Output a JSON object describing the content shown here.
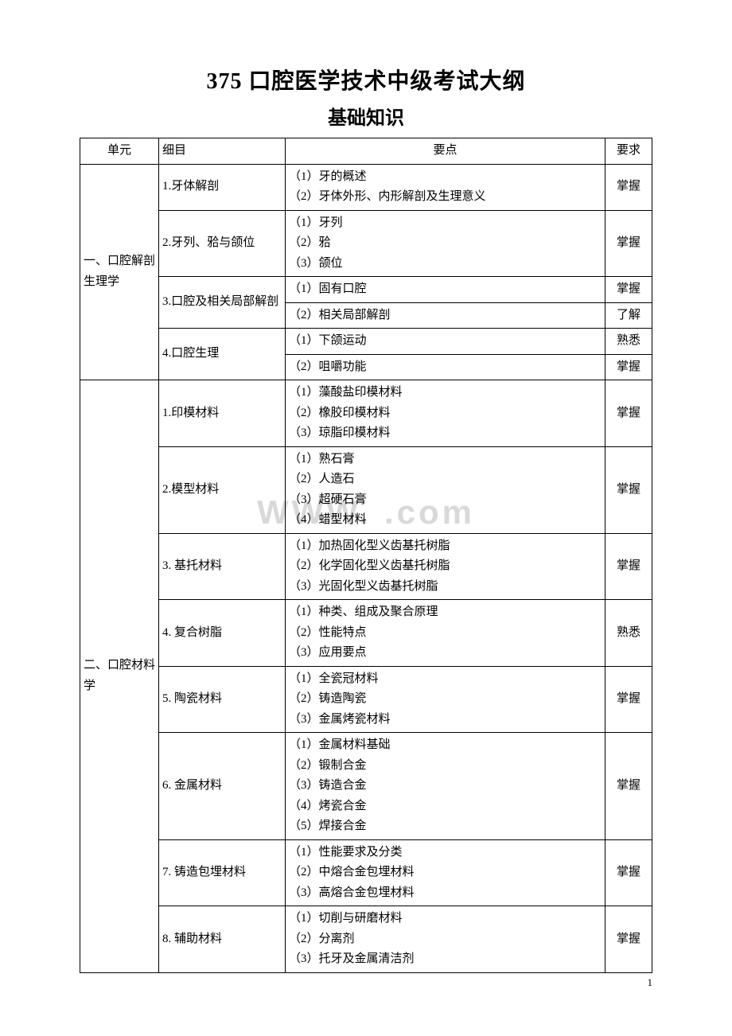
{
  "title": "375 口腔医学技术中级考试大纲",
  "subtitle": "基础知识",
  "watermark_text": "WWW.        .com",
  "page_number": "1",
  "table": {
    "headers": {
      "unit": "单元",
      "item": "细目",
      "point": "要点",
      "req": "要求"
    },
    "units": [
      {
        "name": "一、口腔解剖生理学",
        "items": [
          {
            "name": "1.牙体解剖",
            "blocks": [
              {
                "points": [
                  "（1）牙的概述",
                  "（2）牙体外形、内形解剖及生理意义"
                ],
                "req": "掌握"
              }
            ]
          },
          {
            "name": "2.牙列、𬌗与颌位",
            "blocks": [
              {
                "points": [
                  "（1）牙列",
                  "（2）𬌗",
                  "（3）颌位"
                ],
                "req": "掌握"
              }
            ]
          },
          {
            "name": "3.口腔及相关局部解剖",
            "blocks": [
              {
                "points": [
                  "（1）固有口腔"
                ],
                "req": "掌握"
              },
              {
                "points": [
                  "（2）相关局部解剖"
                ],
                "req": "了解"
              }
            ]
          },
          {
            "name": "4.口腔生理",
            "blocks": [
              {
                "points": [
                  "（1）下颌运动"
                ],
                "req": "熟悉"
              },
              {
                "points": [
                  "（2）咀嚼功能"
                ],
                "req": "掌握"
              }
            ]
          }
        ]
      },
      {
        "name": "二、口腔材料学",
        "items": [
          {
            "name": "1.印模材料",
            "blocks": [
              {
                "points": [
                  "（1）藻酸盐印模材料",
                  "（2）橡胶印模材料",
                  "（3）琼脂印模材料"
                ],
                "req": "掌握"
              }
            ]
          },
          {
            "name": "2.模型材料",
            "blocks": [
              {
                "points": [
                  "（1）熟石膏",
                  "（2）人造石",
                  "（3）超硬石膏",
                  "（4）蜡型材料"
                ],
                "req": "掌握"
              }
            ]
          },
          {
            "name": "3.  基托材料",
            "blocks": [
              {
                "points": [
                  "（1）加热固化型义齿基托树脂",
                  "（2）化学固化型义齿基托树脂",
                  "（3）光固化型义齿基托树脂"
                ],
                "req": "掌握"
              }
            ]
          },
          {
            "name": "4.  复合树脂",
            "blocks": [
              {
                "points": [
                  "（1）种类、组成及聚合原理",
                  "（2）性能特点",
                  "（3）应用要点"
                ],
                "req": "熟悉"
              }
            ]
          },
          {
            "name": "5.  陶瓷材料",
            "blocks": [
              {
                "points": [
                  "（1）全瓷冠材料",
                  "（2）铸造陶瓷",
                  "（3）金属烤瓷材料"
                ],
                "req": "掌握"
              }
            ]
          },
          {
            "name": "6.  金属材料",
            "blocks": [
              {
                "points": [
                  "（1）金属材料基础",
                  "（2）锻制合金",
                  "（3）铸造合金",
                  "（4）烤瓷合金",
                  "（5）焊接合金"
                ],
                "req": "掌握"
              }
            ]
          },
          {
            "name": "7.  铸造包埋材料",
            "blocks": [
              {
                "points": [
                  "（1）性能要求及分类",
                  "（2）中熔合金包埋材料",
                  "（3）高熔合金包埋材料"
                ],
                "req": "掌握"
              }
            ]
          },
          {
            "name": "8.  辅助材料",
            "blocks": [
              {
                "points": [
                  "（1）切削与研磨材料",
                  "（2）分离剂",
                  "（3）托牙及金属清洁剂"
                ],
                "req": "掌握"
              }
            ]
          }
        ]
      }
    ]
  }
}
